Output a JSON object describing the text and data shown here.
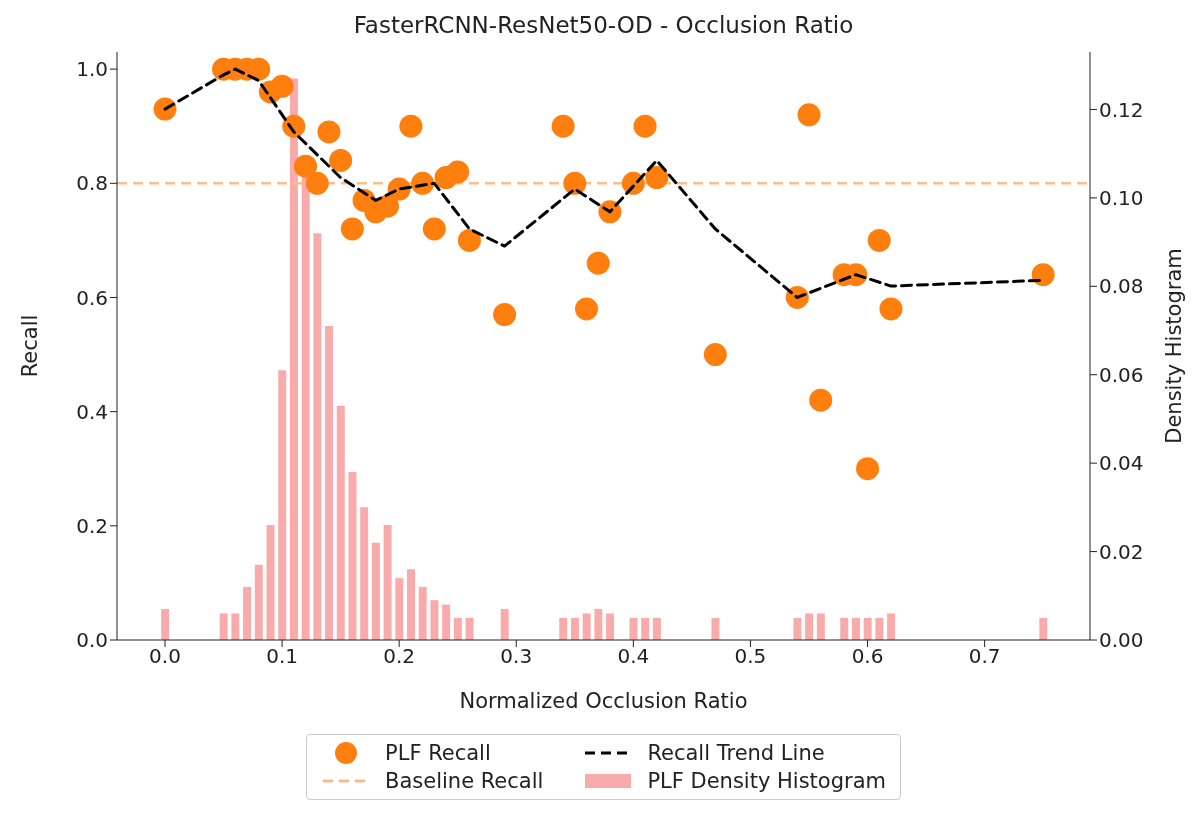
{
  "chart_data": {
    "type": "scatter",
    "title": "FasterRCNN-ResNet50-OD - Occlusion Ratio",
    "xlabel": "Normalized Occlusion Ratio",
    "ylabel": "Recall",
    "y2label": "Density Histogram",
    "xlim": [
      -0.041,
      0.79
    ],
    "ylim": [
      0,
      1.03
    ],
    "y2lim": [
      0,
      0.133
    ],
    "xticks": [
      {
        "value": 0,
        "label": "0.0"
      },
      {
        "value": 0.1,
        "label": "0.1"
      },
      {
        "value": 0.2,
        "label": "0.2"
      },
      {
        "value": 0.3,
        "label": "0.3"
      },
      {
        "value": 0.4,
        "label": "0.4"
      },
      {
        "value": 0.5,
        "label": "0.5"
      },
      {
        "value": 0.6,
        "label": "0.6"
      },
      {
        "value": 0.7,
        "label": "0.7"
      }
    ],
    "yticks": [
      {
        "value": 0,
        "label": "0.0"
      },
      {
        "value": 0.2,
        "label": "0.2"
      },
      {
        "value": 0.4,
        "label": "0.4"
      },
      {
        "value": 0.6,
        "label": "0.6"
      },
      {
        "value": 0.8,
        "label": "0.8"
      },
      {
        "value": 1,
        "label": "1.0"
      }
    ],
    "y2ticks": [
      {
        "value": 0,
        "label": "0.00"
      },
      {
        "value": 0.02,
        "label": "0.02"
      },
      {
        "value": 0.04,
        "label": "0.04"
      },
      {
        "value": 0.06,
        "label": "0.06"
      },
      {
        "value": 0.08,
        "label": "0.08"
      },
      {
        "value": 0.1,
        "label": "0.10"
      },
      {
        "value": 0.12,
        "label": "0.12"
      }
    ],
    "legend": "bottom",
    "series": [
      {
        "name": "PLF Recall",
        "marker": "circle",
        "color": "#ff7f0e",
        "x": [
          0,
          0.05,
          0.06,
          0.07,
          0.08,
          0.09,
          0.1,
          0.11,
          0.12,
          0.13,
          0.14,
          0.15,
          0.16,
          0.17,
          0.18,
          0.19,
          0.2,
          0.21,
          0.22,
          0.23,
          0.24,
          0.25,
          0.26,
          0.29,
          0.34,
          0.35,
          0.36,
          0.37,
          0.38,
          0.4,
          0.41,
          0.42,
          0.47,
          0.54,
          0.55,
          0.56,
          0.58,
          0.59,
          0.6,
          0.61,
          0.62,
          0.75
        ],
        "values": [
          0.93,
          1.0,
          1.0,
          1.0,
          1.0,
          0.96,
          0.97,
          0.9,
          0.83,
          0.8,
          0.89,
          0.84,
          0.72,
          0.77,
          0.75,
          0.76,
          0.79,
          0.9,
          0.8,
          0.72,
          0.81,
          0.82,
          0.7,
          0.57,
          0.9,
          0.8,
          0.58,
          0.66,
          0.75,
          0.8,
          0.9,
          0.81,
          0.5,
          0.6,
          0.92,
          0.42,
          0.64,
          0.64,
          0.3,
          0.7,
          0.58,
          0.64
        ]
      },
      {
        "name": "Recall Trend Line",
        "type": "line",
        "marker": "none",
        "line_style": "dashed",
        "color": "#000000",
        "x": [
          0,
          0.05,
          0.06,
          0.08,
          0.09,
          0.11,
          0.15,
          0.18,
          0.2,
          0.23,
          0.26,
          0.29,
          0.35,
          0.38,
          0.42,
          0.47,
          0.54,
          0.59,
          0.62,
          0.75
        ],
        "values": [
          0.93,
          0.99,
          1.0,
          0.98,
          0.95,
          0.89,
          0.81,
          0.77,
          0.79,
          0.8,
          0.72,
          0.69,
          0.79,
          0.75,
          0.84,
          0.72,
          0.6,
          0.64,
          0.62,
          0.63
        ]
      },
      {
        "name": "PLF Density Histogram",
        "type": "bar",
        "axis": "y2",
        "color": "#f9aaaa",
        "x": [
          0,
          0.05,
          0.06,
          0.07,
          0.08,
          0.09,
          0.1,
          0.11,
          0.12,
          0.13,
          0.14,
          0.15,
          0.16,
          0.17,
          0.18,
          0.19,
          0.2,
          0.21,
          0.22,
          0.23,
          0.24,
          0.25,
          0.26,
          0.29,
          0.34,
          0.35,
          0.36,
          0.37,
          0.38,
          0.4,
          0.41,
          0.42,
          0.47,
          0.54,
          0.55,
          0.56,
          0.58,
          0.59,
          0.6,
          0.61,
          0.62,
          0.75
        ],
        "values": [
          0.007,
          0.006,
          0.006,
          0.012,
          0.017,
          0.026,
          0.061,
          0.127,
          0.105,
          0.092,
          0.071,
          0.053,
          0.038,
          0.03,
          0.022,
          0.026,
          0.014,
          0.016,
          0.012,
          0.009,
          0.008,
          0.005,
          0.005,
          0.007,
          0.005,
          0.005,
          0.006,
          0.007,
          0.006,
          0.005,
          0.005,
          0.005,
          0.005,
          0.005,
          0.006,
          0.006,
          0.005,
          0.005,
          0.005,
          0.005,
          0.006,
          0.005
        ]
      }
    ],
    "ref_lines": [
      {
        "axis": "y",
        "value": 0.8,
        "label": "Baseline Recall",
        "color": "#f5c08c",
        "line_style": "dashed"
      }
    ]
  }
}
